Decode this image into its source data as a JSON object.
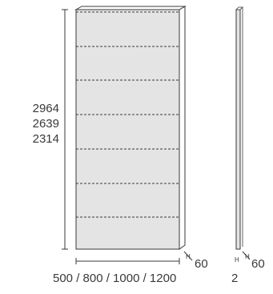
{
  "front_view": {
    "height_values": [
      "2964",
      "2639",
      "2314"
    ],
    "width_label": "500 / 800 / 1000 / 1200",
    "depth_label": "60",
    "depth_axis_letter": "H",
    "panel_divisions": 7,
    "panel_fill": "#e4e4e4"
  },
  "side_view": {
    "thickness_label": "2",
    "depth_label": "60",
    "depth_axis_letter_left": "H",
    "depth_axis_letter_right": "H"
  },
  "colors": {
    "line": "#3a3a3a",
    "panel_fill": "#e4e4e4",
    "text": "#3a3a3a"
  }
}
